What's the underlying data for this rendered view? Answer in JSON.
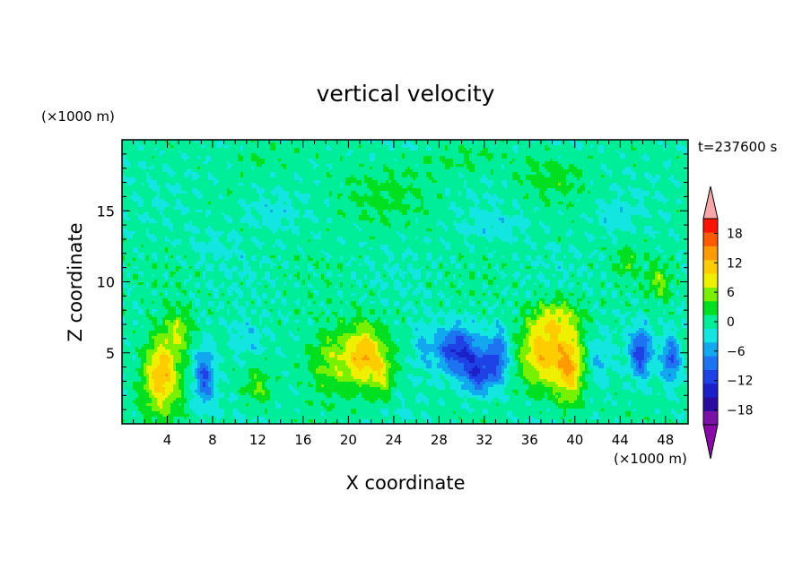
{
  "chart_data": {
    "type": "heatmap",
    "title": "vertical velocity",
    "xlabel": "X coordinate",
    "ylabel": "Z coordinate",
    "x_unit": "(×1000 m)",
    "y_unit": "(×1000 m)",
    "time_label": "t=237600 s",
    "xlim": [
      0,
      50
    ],
    "ylim": [
      0,
      20
    ],
    "x_ticks": [
      4,
      8,
      12,
      16,
      20,
      24,
      28,
      32,
      36,
      40,
      44,
      48
    ],
    "y_ticks": [
      5,
      10,
      15
    ],
    "colorbar": {
      "tick_values": [
        18,
        12,
        6,
        0,
        -6,
        -12,
        -18
      ],
      "levels": [
        -21,
        -18,
        -15,
        -12,
        -9,
        -6,
        -3,
        0,
        3,
        6,
        9,
        12,
        15,
        18,
        21
      ],
      "colors": [
        "#7b12a8",
        "#2a0ca0",
        "#1c20c8",
        "#1f42e6",
        "#1e74f0",
        "#12a8f0",
        "#13e6e0",
        "#00ee9a",
        "#00e020",
        "#78f000",
        "#eef000",
        "#ffcc00",
        "#ff9a00",
        "#ff5a00",
        "#ff1400"
      ],
      "over_color": "#f7a7a7",
      "under_color": "#8a0aa8"
    },
    "features": [
      {
        "x": 3.5,
        "z": 3.5,
        "sx": 1.6,
        "sz": 2.6,
        "amp": 14
      },
      {
        "x": 5.0,
        "z": 6.5,
        "sx": 1.2,
        "sz": 1.5,
        "amp": 7
      },
      {
        "x": 7.3,
        "z": 3.3,
        "sx": 0.9,
        "sz": 2.0,
        "amp": -10
      },
      {
        "x": 11.0,
        "z": 6.0,
        "sx": 1.5,
        "sz": 1.5,
        "amp": -4
      },
      {
        "x": 12.0,
        "z": 2.5,
        "sx": 1.2,
        "sz": 1.4,
        "amp": 5
      },
      {
        "x": 19.0,
        "z": 4.5,
        "sx": 2.6,
        "sz": 2.2,
        "amp": 8
      },
      {
        "x": 21.5,
        "z": 5.0,
        "sx": 1.4,
        "sz": 2.0,
        "amp": 11
      },
      {
        "x": 23.0,
        "z": 3.5,
        "sx": 1.0,
        "sz": 1.6,
        "amp": 7
      },
      {
        "x": 26.5,
        "z": 5.5,
        "sx": 1.0,
        "sz": 2.0,
        "amp": -4
      },
      {
        "x": 29.5,
        "z": 5.2,
        "sx": 1.8,
        "sz": 1.6,
        "amp": -12
      },
      {
        "x": 31.5,
        "z": 3.6,
        "sx": 1.4,
        "sz": 1.5,
        "amp": -11
      },
      {
        "x": 33.2,
        "z": 4.8,
        "sx": 0.9,
        "sz": 1.8,
        "amp": -9
      },
      {
        "x": 37.0,
        "z": 5.0,
        "sx": 1.8,
        "sz": 2.4,
        "amp": 12
      },
      {
        "x": 39.5,
        "z": 4.0,
        "sx": 1.3,
        "sz": 2.5,
        "amp": 13
      },
      {
        "x": 38.5,
        "z": 7.5,
        "sx": 2.0,
        "sz": 1.3,
        "amp": 7
      },
      {
        "x": 42.0,
        "z": 4.5,
        "sx": 1.0,
        "sz": 1.8,
        "amp": -4
      },
      {
        "x": 45.8,
        "z": 5.0,
        "sx": 0.9,
        "sz": 1.7,
        "amp": -11
      },
      {
        "x": 48.5,
        "z": 4.5,
        "sx": 0.8,
        "sz": 1.6,
        "amp": -10
      },
      {
        "x": 47.5,
        "z": 10.0,
        "sx": 1.0,
        "sz": 1.2,
        "amp": 6
      },
      {
        "x": 44.5,
        "z": 11.5,
        "sx": 1.0,
        "sz": 1.0,
        "amp": 4
      },
      {
        "x": 13.0,
        "z": 15.0,
        "sx": 2.5,
        "sz": 1.2,
        "amp": -3
      },
      {
        "x": 22.0,
        "z": 16.0,
        "sx": 5.0,
        "sz": 2.0,
        "amp": 2.5
      },
      {
        "x": 38.0,
        "z": 17.5,
        "sx": 3.0,
        "sz": 1.5,
        "amp": 3
      },
      {
        "x": 43.5,
        "z": 14.5,
        "sx": 1.5,
        "sz": 1.0,
        "amp": -3
      },
      {
        "x": 12.0,
        "z": 19.0,
        "sx": 3.0,
        "sz": 1.0,
        "amp": 2
      },
      {
        "x": 30.0,
        "z": 18.5,
        "sx": 4.0,
        "sz": 1.0,
        "amp": 2
      },
      {
        "x": 8.0,
        "z": 12.5,
        "sx": 2.0,
        "sz": 1.0,
        "amp": -2
      },
      {
        "x": 33.0,
        "z": 14.0,
        "sx": 3.0,
        "sz": 1.0,
        "amp": -2.5
      }
    ]
  }
}
